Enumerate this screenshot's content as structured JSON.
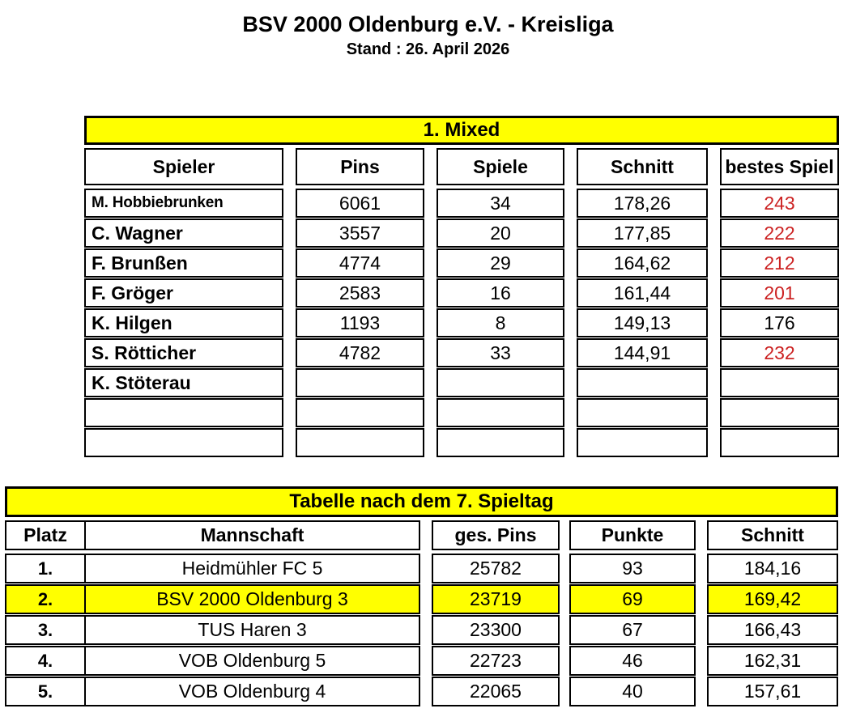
{
  "page": {
    "title": "BSV 2000 Oldenburg e.V. - Kreisliga",
    "subtitle": "Stand : 26. April 2026"
  },
  "colors": {
    "banner_yellow": "#ffff00",
    "highlight_row_yellow": "#ffff00",
    "best_game_red": "#cc2222",
    "border_black": "#000000"
  },
  "mixed_table": {
    "banner": "1. Mixed",
    "headers": [
      "Spieler",
      "Pins",
      "Spiele",
      "Schnitt",
      "bestes Spiel"
    ],
    "rows": [
      {
        "spieler": "M. Hobbiebrunken",
        "pins": "6061",
        "spiele": "34",
        "schnitt": "178,26",
        "bestes": "243",
        "bestes_red": true,
        "shrink": true
      },
      {
        "spieler": "C. Wagner",
        "pins": "3557",
        "spiele": "20",
        "schnitt": "177,85",
        "bestes": "222",
        "bestes_red": true,
        "shrink": false
      },
      {
        "spieler": "F. Brunßen",
        "pins": "4774",
        "spiele": "29",
        "schnitt": "164,62",
        "bestes": "212",
        "bestes_red": true,
        "shrink": false
      },
      {
        "spieler": "F. Gröger",
        "pins": "2583",
        "spiele": "16",
        "schnitt": "161,44",
        "bestes": "201",
        "bestes_red": true,
        "shrink": false
      },
      {
        "spieler": "K. Hilgen",
        "pins": "1193",
        "spiele": "8",
        "schnitt": "149,13",
        "bestes": "176",
        "bestes_red": false,
        "shrink": false
      },
      {
        "spieler": "S. Rötticher",
        "pins": "4782",
        "spiele": "33",
        "schnitt": "144,91",
        "bestes": "232",
        "bestes_red": true,
        "shrink": false
      },
      {
        "spieler": "K. Stöterau",
        "pins": "",
        "spiele": "",
        "schnitt": "",
        "bestes": "",
        "bestes_red": false,
        "shrink": false
      },
      {
        "spieler": "",
        "pins": "",
        "spiele": "",
        "schnitt": "",
        "bestes": "",
        "bestes_red": false,
        "shrink": false
      },
      {
        "spieler": "",
        "pins": "",
        "spiele": "",
        "schnitt": "",
        "bestes": "",
        "bestes_red": false,
        "shrink": false
      }
    ]
  },
  "standings_table": {
    "banner": "Tabelle nach dem 7. Spieltag",
    "headers": [
      "Platz",
      "Mannschaft",
      "ges. Pins",
      "Punkte",
      "Schnitt"
    ],
    "rows": [
      {
        "platz": "1.",
        "mannschaft": "Heidmühler FC 5",
        "pins": "25782",
        "punkte": "93",
        "schnitt": "184,16",
        "highlight": false
      },
      {
        "platz": "2.",
        "mannschaft": "BSV 2000 Oldenburg 3",
        "pins": "23719",
        "punkte": "69",
        "schnitt": "169,42",
        "highlight": true
      },
      {
        "platz": "3.",
        "mannschaft": "TUS Haren 3",
        "pins": "23300",
        "punkte": "67",
        "schnitt": "166,43",
        "highlight": false
      },
      {
        "platz": "4.",
        "mannschaft": "VOB Oldenburg 5",
        "pins": "22723",
        "punkte": "46",
        "schnitt": "162,31",
        "highlight": false
      },
      {
        "platz": "5.",
        "mannschaft": "VOB Oldenburg 4",
        "pins": "22065",
        "punkte": "40",
        "schnitt": "157,61",
        "highlight": false
      }
    ]
  }
}
